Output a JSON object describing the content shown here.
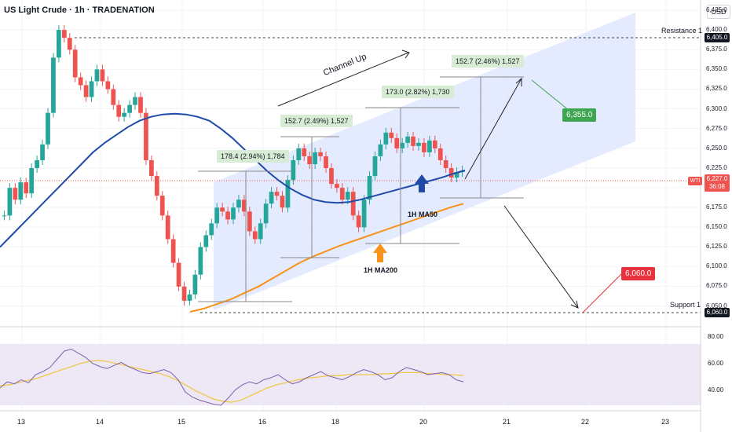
{
  "header": {
    "title": "US Light Crude · 1h · TRADENATION",
    "currency": "USD"
  },
  "colors": {
    "up": "#26a69a",
    "down": "#ef5350",
    "ma50": "#1e4ba8",
    "ma200": "#f7931a",
    "channel": "#dbe4ff",
    "rsi": "#7b61a8",
    "rsi_ma": "#f0c84a",
    "rsi_band": "#ede7f6",
    "grid": "#f1f3f6",
    "green_label": "#3ea553",
    "red_label": "#e8333f",
    "blue_arrow": "#1e4ba8",
    "orange_arrow": "#f7931a"
  },
  "axis": {
    "price_ticks": [
      "6,425.0",
      "6,400.0",
      "6,375.0",
      "6,350.0",
      "6,325.0",
      "6,300.0",
      "6,275.0",
      "6,250.0",
      "6,225.0",
      "6,200.0",
      "6,175.0",
      "6,150.0",
      "6,125.0",
      "6,100.0",
      "6,075.0",
      "6,050.0"
    ],
    "rsi_ticks": [
      "80.00",
      "60.00",
      "40.00"
    ],
    "x_labels": [
      "13",
      "14",
      "15",
      "16",
      "18",
      "20",
      "21",
      "22",
      "23"
    ]
  },
  "price_tags": {
    "resistance": "6,405.0",
    "support": "6,060.0",
    "last": "6,227.0",
    "countdown": "36:08",
    "symbol": "WTI"
  },
  "annotations": {
    "resistance_label": "Resistance 1",
    "support_label": "Support 1",
    "channel_label": "Channel Up",
    "ma50_label": "1H MA50",
    "ma200_label": "1H MA200",
    "target_up": "6,355.0",
    "target_down": "6,060.0",
    "measure_1": "178.4 (2.94%) 1,784",
    "measure_2": "152.7 (2.49%) 1,527",
    "measure_3": "173.0 (2.82%) 1,730",
    "measure_4": "152.7 (2.46%) 1,527"
  },
  "chart_data": {
    "type": "candlestick",
    "title": "US Light Crude · 1h · TRADENATION",
    "y_range": [
      6040,
      6430
    ],
    "rsi_range": [
      25,
      85
    ],
    "x_days": [
      "13",
      "14",
      "15",
      "16",
      "18",
      "20",
      "21",
      "22",
      "23"
    ],
    "resistance": 6405.0,
    "support": 6060.0,
    "last_price": 6227.0,
    "targets": {
      "up": 6355.0,
      "down": 6060.0
    },
    "price_path": [
      6170,
      6205,
      6190,
      6212,
      6198,
      6230,
      6240,
      6260,
      6300,
      6370,
      6405,
      6395,
      6380,
      6345,
      6335,
      6320,
      6340,
      6355,
      6340,
      6330,
      6310,
      6295,
      6300,
      6310,
      6320,
      6300,
      6240,
      6220,
      6195,
      6170,
      6140,
      6110,
      6080,
      6062,
      6070,
      6095,
      6130,
      6145,
      6160,
      6180,
      6175,
      6165,
      6180,
      6190,
      6175,
      6150,
      6140,
      6160,
      6185,
      6200,
      6195,
      6180,
      6215,
      6240,
      6255,
      6245,
      6235,
      6250,
      6245,
      6230,
      6210,
      6205,
      6190,
      6200,
      6170,
      6155,
      6190,
      6220,
      6245,
      6260,
      6275,
      6268,
      6255,
      6262,
      6270,
      6258,
      6262,
      6250,
      6265,
      6255,
      6240,
      6230,
      6218,
      6225,
      6227
    ],
    "ma50_path": [
      6130,
      6145,
      6160,
      6175,
      6190,
      6205,
      6220,
      6235,
      6250,
      6262,
      6272,
      6282,
      6290,
      6295,
      6298,
      6299,
      6298,
      6295,
      6290,
      6280,
      6268,
      6254,
      6240,
      6226,
      6214,
      6204,
      6196,
      6190,
      6187,
      6186,
      6187,
      6190,
      6194,
      6198,
      6202,
      6206,
      6210,
      6214,
      6218,
      6223,
      6227
    ],
    "ma200_path": [
      6048,
      6052,
      6058,
      6064,
      6072,
      6080,
      6090,
      6100,
      6110,
      6118,
      6125,
      6132,
      6138,
      6144,
      6150,
      6156,
      6162,
      6168,
      6174,
      6180,
      6185
    ],
    "rsi_path": [
      42,
      48,
      46,
      50,
      47,
      55,
      58,
      62,
      70,
      78,
      80,
      76,
      72,
      66,
      63,
      61,
      64,
      67,
      63,
      60,
      57,
      56,
      58,
      60,
      57,
      50,
      38,
      33,
      30,
      28,
      26,
      25,
      32,
      40,
      45,
      48,
      46,
      50,
      52,
      55,
      50,
      46,
      48,
      52,
      55,
      58,
      54,
      52,
      50,
      53,
      57,
      60,
      58,
      55,
      50,
      52,
      58,
      62,
      60,
      58,
      55,
      56,
      57,
      55,
      50,
      48
    ],
    "rsi_ma_path": [
      44,
      45,
      47,
      49,
      51,
      54,
      57,
      60,
      63,
      66,
      68,
      69,
      68,
      66,
      64,
      62,
      60,
      58,
      56,
      53,
      49,
      44,
      39,
      35,
      31,
      29,
      28,
      30,
      34,
      38,
      42,
      45,
      47,
      49,
      51,
      52,
      53,
      54,
      54,
      55,
      55,
      55,
      55,
      56,
      56,
      57,
      57,
      57,
      56,
      56,
      55,
      55,
      54
    ]
  }
}
